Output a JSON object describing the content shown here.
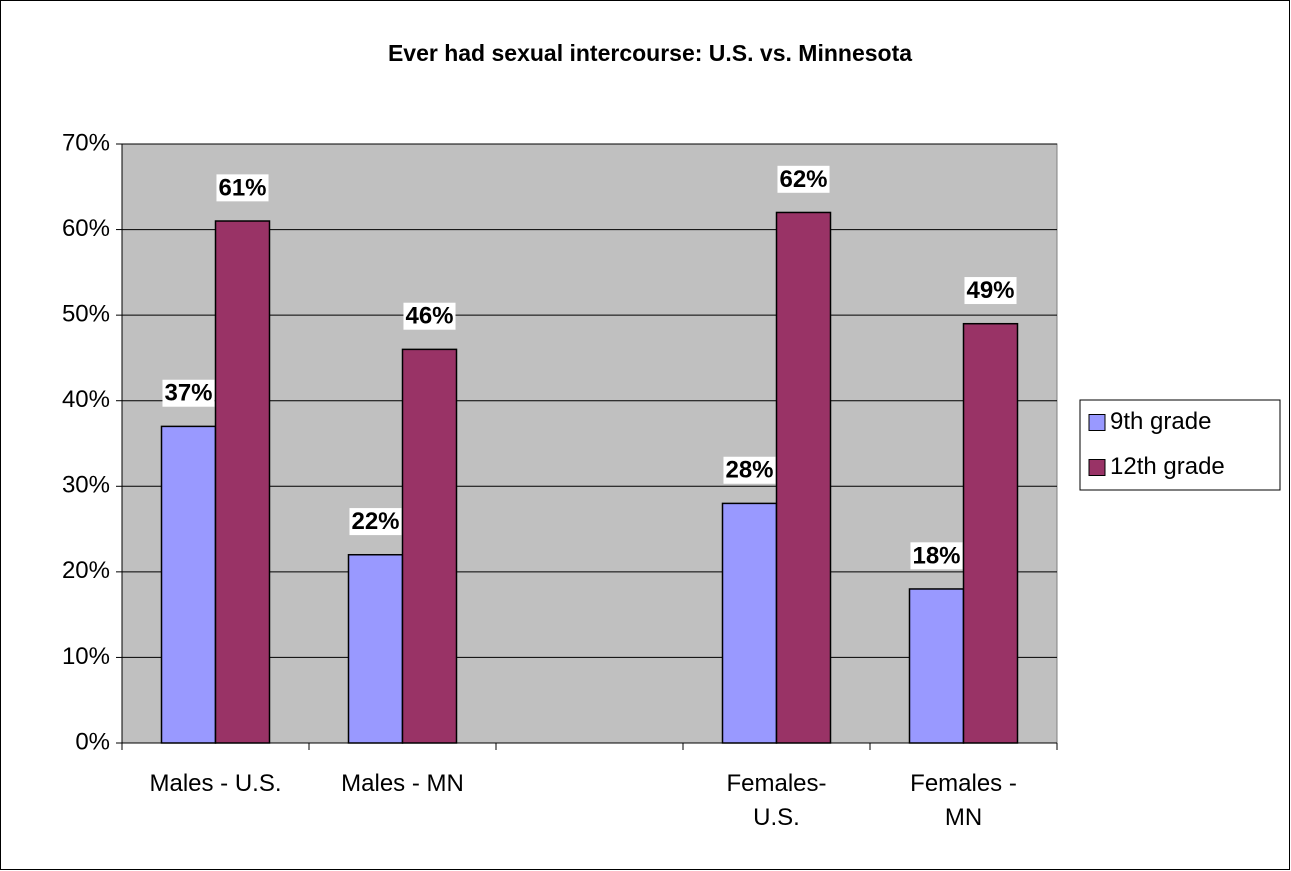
{
  "chart_data": {
    "type": "bar",
    "title": "Ever had sexual intercourse: U.S. vs. Minnesota",
    "categories": [
      "Males - U.S.",
      "Males - MN",
      null,
      "Females-\nU.S.",
      "Females -\nMN"
    ],
    "series": [
      {
        "name": "9th grade",
        "color": "#9999ff",
        "values": [
          37,
          22,
          null,
          28,
          18
        ],
        "value_labels": [
          "37%",
          "22%",
          null,
          "28%",
          "18%"
        ]
      },
      {
        "name": "12th grade",
        "color": "#993366",
        "values": [
          61,
          46,
          null,
          62,
          49
        ],
        "value_labels": [
          "61%",
          "46%",
          null,
          "62%",
          "49%"
        ]
      }
    ],
    "ylim": [
      0,
      70
    ],
    "yticks": [
      {
        "value": 0,
        "label": "0%"
      },
      {
        "value": 10,
        "label": "10%"
      },
      {
        "value": 20,
        "label": "20%"
      },
      {
        "value": 30,
        "label": "30%"
      },
      {
        "value": 40,
        "label": "40%"
      },
      {
        "value": 50,
        "label": "50%"
      },
      {
        "value": 60,
        "label": "60%"
      },
      {
        "value": 70,
        "label": "70%"
      }
    ],
    "grid": true,
    "legend": "right"
  }
}
